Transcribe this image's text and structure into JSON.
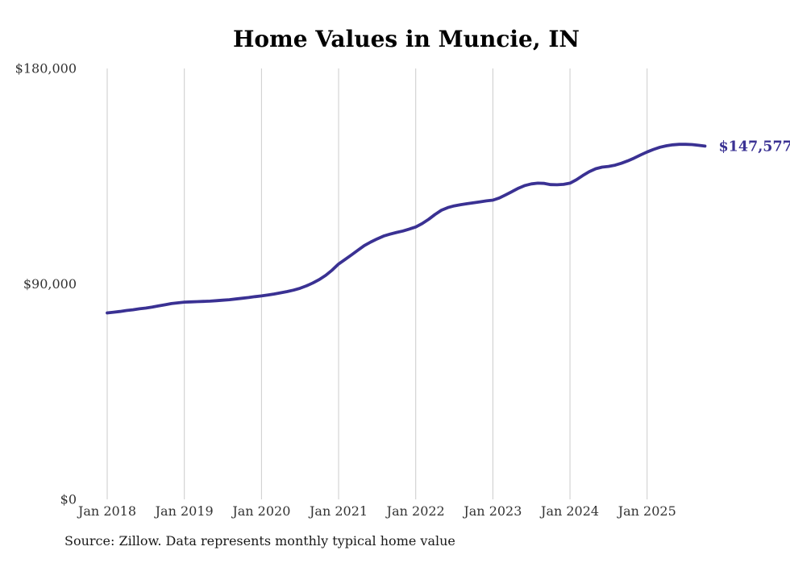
{
  "title": "Home Values in Muncie, IN",
  "source_note": "Source: Zillow. Data represents monthly typical home value",
  "colors": {
    "line": "#3a3193",
    "grid": "#cbcbcb",
    "tick_text": "#333333",
    "title_text": "#000000",
    "end_label_text": "#3a3193",
    "background": "#ffffff"
  },
  "chart_data": {
    "type": "line",
    "title": "Home Values in Muncie, IN",
    "xlabel": "",
    "ylabel": "",
    "ylim": [
      0,
      180000
    ],
    "y_ticks": [
      0,
      90000,
      180000
    ],
    "y_tick_labels": [
      "$0",
      "$90,000",
      "$180,000"
    ],
    "x_tick_labels": [
      "Jan 2018",
      "Jan 2019",
      "Jan 2020",
      "Jan 2021",
      "Jan 2022",
      "Jan 2023",
      "Jan 2024",
      "Jan 2025"
    ],
    "grid": "vertical-only",
    "legend": "none",
    "final_value": 147577,
    "final_label": "$147,577",
    "series": [
      {
        "name": "Monthly typical home value",
        "months": [
          "2018-01",
          "2018-02",
          "2018-03",
          "2018-04",
          "2018-05",
          "2018-06",
          "2018-07",
          "2018-08",
          "2018-09",
          "2018-10",
          "2018-11",
          "2018-12",
          "2019-01",
          "2019-02",
          "2019-03",
          "2019-04",
          "2019-05",
          "2019-06",
          "2019-07",
          "2019-08",
          "2019-09",
          "2019-10",
          "2019-11",
          "2019-12",
          "2020-01",
          "2020-02",
          "2020-03",
          "2020-04",
          "2020-05",
          "2020-06",
          "2020-07",
          "2020-08",
          "2020-09",
          "2020-10",
          "2020-11",
          "2020-12",
          "2021-01",
          "2021-02",
          "2021-03",
          "2021-04",
          "2021-05",
          "2021-06",
          "2021-07",
          "2021-08",
          "2021-09",
          "2021-10",
          "2021-11",
          "2021-12",
          "2022-01",
          "2022-02",
          "2022-03",
          "2022-04",
          "2022-05",
          "2022-06",
          "2022-07",
          "2022-08",
          "2022-09",
          "2022-10",
          "2022-11",
          "2022-12",
          "2023-01",
          "2023-02",
          "2023-03",
          "2023-04",
          "2023-05",
          "2023-06",
          "2023-07",
          "2023-08",
          "2023-09",
          "2023-10",
          "2023-11",
          "2023-12",
          "2024-01",
          "2024-02",
          "2024-03",
          "2024-04",
          "2024-05",
          "2024-06",
          "2024-07",
          "2024-08",
          "2024-09",
          "2024-10",
          "2024-11",
          "2024-12",
          "2025-01",
          "2025-02",
          "2025-03",
          "2025-04",
          "2025-05",
          "2025-06",
          "2025-07",
          "2025-08",
          "2025-09",
          "2025-10"
        ],
        "values": [
          77900,
          78200,
          78500,
          78900,
          79200,
          79600,
          79900,
          80300,
          80800,
          81300,
          81800,
          82100,
          82400,
          82500,
          82600,
          82700,
          82800,
          83000,
          83200,
          83400,
          83700,
          84000,
          84300,
          84700,
          85000,
          85400,
          85800,
          86300,
          86800,
          87400,
          88200,
          89200,
          90400,
          91800,
          93600,
          95800,
          98300,
          100200,
          102100,
          104100,
          106000,
          107500,
          108800,
          110000,
          110800,
          111500,
          112100,
          112900,
          113800,
          115200,
          117000,
          119000,
          120800,
          121900,
          122600,
          123100,
          123500,
          123900,
          124300,
          124700,
          125000,
          125900,
          127200,
          128600,
          130000,
          131100,
          131800,
          132100,
          132000,
          131500,
          131400,
          131600,
          132100,
          133500,
          135300,
          136900,
          138100,
          138800,
          139100,
          139600,
          140400,
          141400,
          142600,
          143900,
          145100,
          146200,
          147100,
          147700,
          148100,
          148300,
          148300,
          148200,
          147900,
          147577
        ]
      }
    ]
  }
}
